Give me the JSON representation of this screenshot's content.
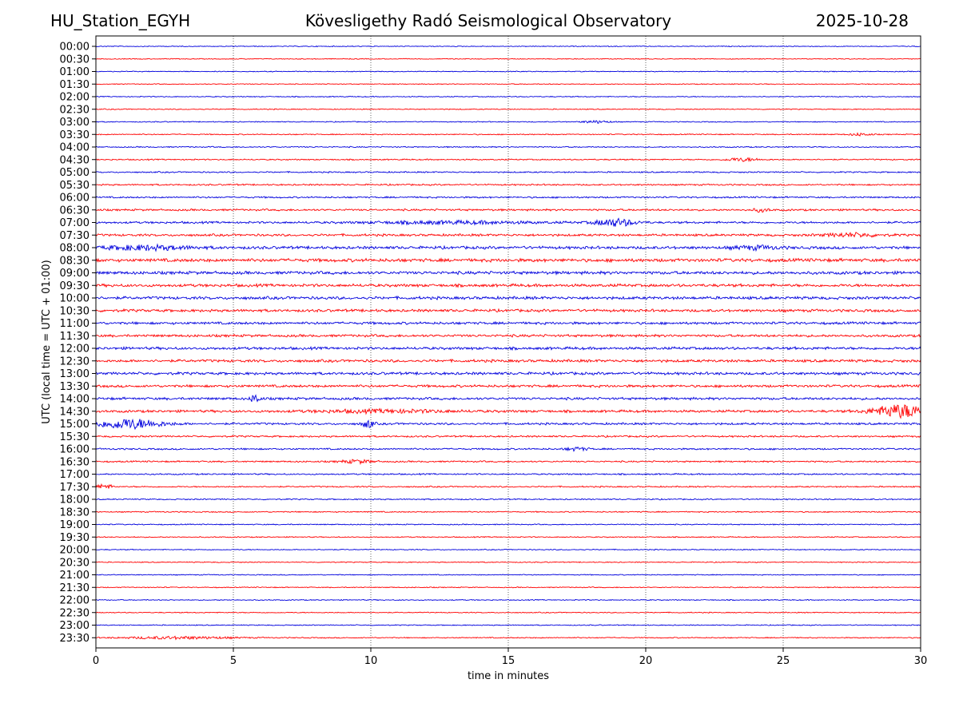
{
  "header": {
    "station": "HU_Station_EGYH",
    "observatory": "Kövesligethy Radó Seismological Observatory",
    "date": "2025-10-28"
  },
  "chart_data": {
    "type": "line",
    "title": "Kövesligethy Radó Seismological Observatory",
    "xlabel": "time in minutes",
    "ylabel": "UTC (local time = UTC + 01:00)",
    "xlim": [
      0,
      30
    ],
    "xticks": [
      0,
      5,
      10,
      15,
      20,
      25,
      30
    ],
    "grid_x": true,
    "colors": [
      "#0000dd",
      "#ff0000"
    ],
    "rows": [
      {
        "label": "00:00",
        "noise": 0.45,
        "events": []
      },
      {
        "label": "00:30",
        "noise": 0.45,
        "events": []
      },
      {
        "label": "01:00",
        "noise": 0.45,
        "events": []
      },
      {
        "label": "01:30",
        "noise": 0.45,
        "events": []
      },
      {
        "label": "02:00",
        "noise": 0.5,
        "events": []
      },
      {
        "label": "02:30",
        "noise": 0.5,
        "events": []
      },
      {
        "label": "03:00",
        "noise": 0.5,
        "events": [
          [
            18.2,
            0.5,
            1.5
          ]
        ]
      },
      {
        "label": "03:30",
        "noise": 0.55,
        "events": [
          [
            27.8,
            0.4,
            1.5
          ]
        ]
      },
      {
        "label": "04:00",
        "noise": 0.6,
        "events": []
      },
      {
        "label": "04:30",
        "noise": 0.65,
        "events": [
          [
            23.5,
            0.6,
            2
          ]
        ]
      },
      {
        "label": "05:00",
        "noise": 0.7,
        "events": []
      },
      {
        "label": "05:30",
        "noise": 0.8,
        "events": []
      },
      {
        "label": "06:00",
        "noise": 0.85,
        "events": []
      },
      {
        "label": "06:30",
        "noise": 1.0,
        "events": [
          [
            24.2,
            0.3,
            2
          ]
        ]
      },
      {
        "label": "07:00",
        "noise": 1.1,
        "events": [
          [
            13,
            3,
            1.5
          ],
          [
            18.9,
            0.7,
            4.5
          ]
        ]
      },
      {
        "label": "07:30",
        "noise": 1.2,
        "events": [
          [
            27.5,
            1,
            2
          ]
        ]
      },
      {
        "label": "08:00",
        "noise": 1.5,
        "events": [
          [
            1.8,
            1.6,
            2.5
          ],
          [
            24,
            0.8,
            2
          ]
        ]
      },
      {
        "label": "08:30",
        "noise": 1.7,
        "events": []
      },
      {
        "label": "09:00",
        "noise": 1.6,
        "events": []
      },
      {
        "label": "09:30",
        "noise": 1.5,
        "events": []
      },
      {
        "label": "10:00",
        "noise": 1.5,
        "events": []
      },
      {
        "label": "10:30",
        "noise": 1.4,
        "events": []
      },
      {
        "label": "11:00",
        "noise": 1.3,
        "events": []
      },
      {
        "label": "11:30",
        "noise": 1.3,
        "events": []
      },
      {
        "label": "12:00",
        "noise": 1.4,
        "events": []
      },
      {
        "label": "12:30",
        "noise": 1.4,
        "events": []
      },
      {
        "label": "13:00",
        "noise": 1.4,
        "events": []
      },
      {
        "label": "13:30",
        "noise": 1.3,
        "events": []
      },
      {
        "label": "14:00",
        "noise": 1.3,
        "events": [
          [
            5.8,
            0.15,
            6
          ]
        ]
      },
      {
        "label": "14:30",
        "noise": 1.3,
        "events": [
          [
            10.5,
            2.5,
            1.5
          ],
          [
            29.3,
            1,
            8
          ]
        ]
      },
      {
        "label": "15:00",
        "noise": 1.1,
        "events": [
          [
            1.2,
            1.2,
            6
          ],
          [
            9.9,
            0.2,
            5
          ]
        ]
      },
      {
        "label": "15:30",
        "noise": 0.9,
        "events": []
      },
      {
        "label": "16:00",
        "noise": 0.85,
        "events": [
          [
            17.5,
            0.4,
            2
          ]
        ]
      },
      {
        "label": "16:30",
        "noise": 0.8,
        "events": [
          [
            9.5,
            0.6,
            2
          ]
        ]
      },
      {
        "label": "17:00",
        "noise": 0.75,
        "events": []
      },
      {
        "label": "17:30",
        "noise": 0.7,
        "events": [
          [
            0.3,
            0.3,
            3
          ]
        ]
      },
      {
        "label": "18:00",
        "noise": 0.65,
        "events": []
      },
      {
        "label": "18:30",
        "noise": 0.6,
        "events": []
      },
      {
        "label": "19:00",
        "noise": 0.55,
        "events": []
      },
      {
        "label": "19:30",
        "noise": 0.55,
        "events": []
      },
      {
        "label": "20:00",
        "noise": 0.5,
        "events": []
      },
      {
        "label": "20:30",
        "noise": 0.5,
        "events": []
      },
      {
        "label": "21:00",
        "noise": 0.5,
        "events": []
      },
      {
        "label": "21:30",
        "noise": 0.5,
        "events": []
      },
      {
        "label": "22:00",
        "noise": 0.5,
        "events": []
      },
      {
        "label": "22:30",
        "noise": 0.5,
        "events": []
      },
      {
        "label": "23:00",
        "noise": 0.5,
        "events": []
      },
      {
        "label": "23:30",
        "noise": 0.55,
        "events": [
          [
            3,
            2,
            1.5
          ]
        ]
      }
    ]
  }
}
